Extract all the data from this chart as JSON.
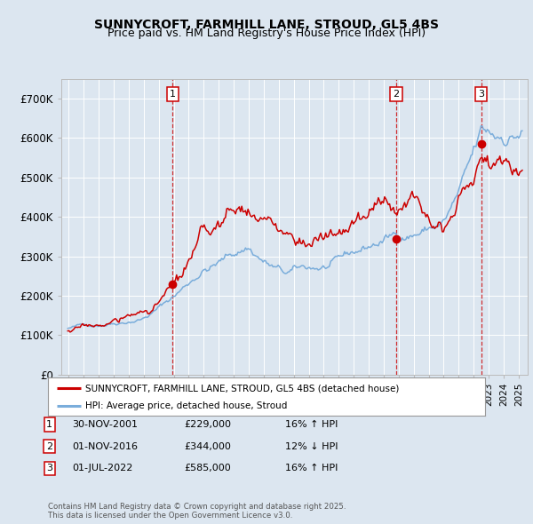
{
  "title": "SUNNYCROFT, FARMHILL LANE, STROUD, GL5 4BS",
  "subtitle": "Price paid vs. HM Land Registry's House Price Index (HPI)",
  "background_color": "#dce6f0",
  "ylim": [
    0,
    750000
  ],
  "yticks": [
    0,
    100000,
    200000,
    300000,
    400000,
    500000,
    600000,
    700000
  ],
  "ytick_labels": [
    "£0",
    "£100K",
    "£200K",
    "£300K",
    "£400K",
    "£500K",
    "£600K",
    "£700K"
  ],
  "sale1_date": 2001.92,
  "sale1_price": 229000,
  "sale2_date": 2016.84,
  "sale2_price": 344000,
  "sale3_date": 2022.5,
  "sale3_price": 585000,
  "legend_house_label": "SUNNYCROFT, FARMHILL LANE, STROUD, GL5 4BS (detached house)",
  "legend_hpi_label": "HPI: Average price, detached house, Stroud",
  "table_rows": [
    {
      "num": "1",
      "date": "30-NOV-2001",
      "price": "£229,000",
      "hpi": "16% ↑ HPI"
    },
    {
      "num": "2",
      "date": "01-NOV-2016",
      "price": "£344,000",
      "hpi": "12% ↓ HPI"
    },
    {
      "num": "3",
      "date": "01-JUL-2022",
      "price": "£585,000",
      "hpi": "16% ↑ HPI"
    }
  ],
  "footnote": "Contains HM Land Registry data © Crown copyright and database right 2025.\nThis data is licensed under the Open Government Licence v3.0.",
  "house_line_color": "#cc0000",
  "hpi_line_color": "#7aaddb",
  "vline_color": "#cc0000",
  "title_fontsize": 10,
  "subtitle_fontsize": 9
}
